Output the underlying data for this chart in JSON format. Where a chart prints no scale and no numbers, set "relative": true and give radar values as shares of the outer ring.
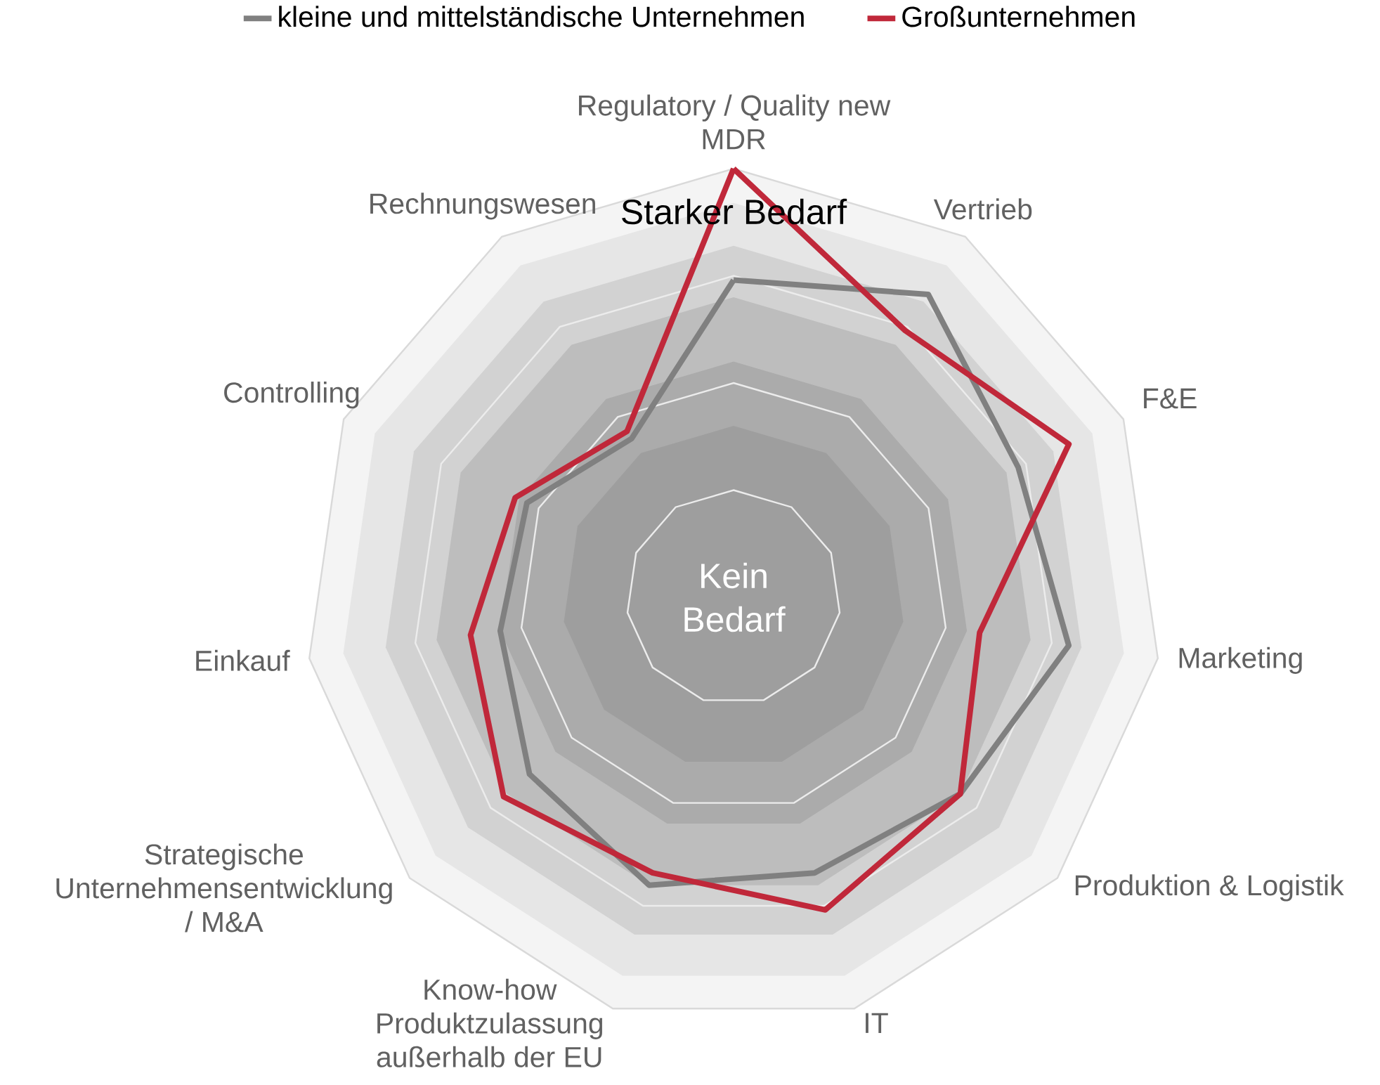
{
  "chart_data": {
    "type": "radar",
    "relative": true,
    "categories": [
      "Regulatory / Quality new MDR",
      "Vertrieb",
      "F&E",
      "Marketing",
      "Produktion & Logistik",
      "IT",
      "Know-how Produktzulassung außerhalb der EU",
      "Strategische Unternehmensentwicklung / M&A",
      "Einkauf",
      "Controlling",
      "Rechnungswesen"
    ],
    "series": [
      {
        "name": "kleine und mittelständische Unternehmen",
        "color": "#808080",
        "values": [
          0.74,
          0.84,
          0.73,
          0.79,
          0.7,
          0.67,
          0.7,
          0.63,
          0.55,
          0.53,
          0.44
        ]
      },
      {
        "name": "Großunternehmen",
        "color": "#c0283a",
        "values": [
          1.0,
          0.74,
          0.86,
          0.58,
          0.7,
          0.76,
          0.67,
          0.71,
          0.62,
          0.56,
          0.46
        ]
      }
    ],
    "annotations": [
      "Starker Bedarf",
      "Kein Bedarf"
    ],
    "legend": "top"
  }
}
